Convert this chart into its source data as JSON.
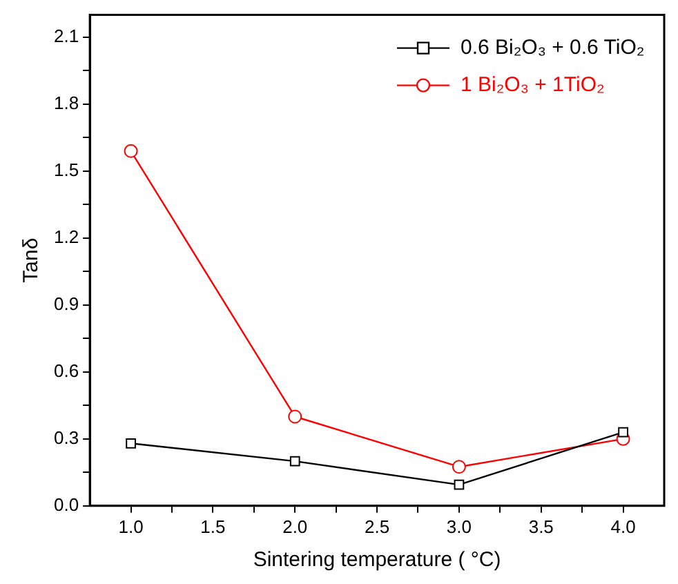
{
  "chart_data": {
    "type": "line",
    "xlabel": "Sintering temperature ( °C)",
    "ylabel": "Tanδ",
    "x": [
      1.0,
      2.0,
      3.0,
      4.0
    ],
    "series": [
      {
        "name": "0.6 Bi₂O₃ + 0.6 TiO₂",
        "color": "#000000",
        "marker": "square",
        "values": [
          0.28,
          0.2,
          0.095,
          0.33
        ]
      },
      {
        "name": "1 Bi₂O₃ + 1TiO₂",
        "color": "#ff0000",
        "marker": "circle",
        "values": [
          1.59,
          0.4,
          0.175,
          0.3
        ]
      }
    ],
    "xlim": [
      0.75,
      4.25
    ],
    "xticks": [
      {
        "value": 1,
        "label": "1.0"
      },
      {
        "value": 1.25,
        "label": null
      },
      1.5,
      {
        "value": 1.75,
        "label": null
      },
      {
        "value": 2,
        "label": "2.0"
      },
      {
        "value": 2.25,
        "label": null
      },
      2.5,
      {
        "value": 2.75,
        "label": null
      },
      {
        "value": 3,
        "label": "3.0"
      },
      {
        "value": 3.25,
        "label": null
      },
      3.5,
      {
        "value": 3.75,
        "label": null
      },
      {
        "value": 4,
        "label": "4.0"
      }
    ],
    "ylim": [
      0,
      2.2
    ],
    "yticks": [
      {
        "value": 0,
        "label": "0.0"
      },
      {
        "value": 0.15,
        "label": null
      },
      0.3,
      {
        "value": 0.45,
        "label": null
      },
      0.6,
      {
        "value": 0.75,
        "label": null
      },
      0.9,
      {
        "value": 1.05,
        "label": null
      },
      1.2,
      {
        "value": 1.35,
        "label": null
      },
      1.5,
      {
        "value": 1.65,
        "label": null
      },
      1.8,
      {
        "value": 1.95,
        "label": null
      },
      2.1
    ],
    "grid": false,
    "legend": "top right",
    "line_style": "solid"
  }
}
